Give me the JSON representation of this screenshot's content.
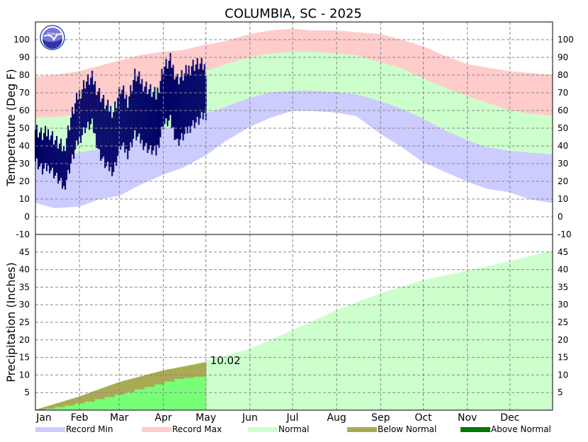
{
  "chart_data": [
    {
      "type": "area",
      "panel": "temperature",
      "title": "COLUMBIA, SC - 2025",
      "ylabel": "Temperature (Deg F)",
      "ylim": [
        -10,
        110
      ],
      "yticks": [
        -10,
        0,
        10,
        20,
        30,
        40,
        50,
        60,
        70,
        80,
        90,
        100
      ],
      "xlim": [
        1,
        365
      ],
      "grid": true,
      "x_unit": "day of year",
      "series": [
        {
          "name": "Record Max",
          "color": "#ffcccc",
          "x": [
            1,
            15,
            32,
            46,
            60,
            74,
            91,
            105,
            121,
            135,
            152,
            166,
            182,
            196,
            213,
            227,
            244,
            258,
            274,
            288,
            305,
            319,
            335,
            349,
            365
          ],
          "values": [
            79,
            80,
            82,
            85,
            88,
            91,
            93,
            94,
            97,
            99,
            103,
            105,
            106,
            105,
            105,
            104,
            103,
            100,
            96,
            91,
            86,
            84,
            82,
            81,
            80
          ]
        },
        {
          "name": "Normal High",
          "color": "#ccffcc",
          "x": [
            1,
            15,
            32,
            46,
            60,
            74,
            91,
            105,
            121,
            135,
            152,
            166,
            182,
            196,
            213,
            227,
            244,
            258,
            274,
            288,
            305,
            319,
            335,
            349,
            365
          ],
          "values": [
            56,
            56,
            58,
            61,
            64,
            68,
            74,
            78,
            82,
            86,
            90,
            92,
            93,
            93,
            92,
            91,
            87,
            84,
            78,
            73,
            68,
            64,
            60,
            58,
            57
          ]
        },
        {
          "name": "Normal Low",
          "color": "#ccffcc",
          "x": [
            1,
            15,
            32,
            46,
            60,
            74,
            91,
            105,
            121,
            135,
            152,
            166,
            182,
            196,
            213,
            227,
            244,
            258,
            274,
            288,
            305,
            319,
            335,
            349,
            365
          ],
          "values": [
            34,
            34,
            36,
            38,
            41,
            44,
            49,
            53,
            58,
            62,
            67,
            70,
            71,
            71,
            70,
            69,
            65,
            61,
            55,
            49,
            43,
            39,
            37,
            36,
            35
          ]
        },
        {
          "name": "Record Min",
          "color": "#ccccff",
          "x": [
            1,
            15,
            32,
            46,
            60,
            74,
            91,
            105,
            121,
            135,
            152,
            166,
            182,
            196,
            213,
            227,
            244,
            258,
            274,
            288,
            305,
            319,
            335,
            349,
            365
          ],
          "values": [
            8,
            5,
            6,
            10,
            12,
            18,
            24,
            28,
            35,
            43,
            51,
            56,
            60,
            60,
            59,
            57,
            47,
            40,
            31,
            26,
            20,
            16,
            14,
            10,
            8
          ]
        },
        {
          "name": "2025 Daily Range",
          "color": "#000066",
          "x": [
            1,
            6,
            11,
            16,
            21,
            26,
            31,
            36,
            41,
            46,
            51,
            56,
            61,
            66,
            71,
            76,
            81,
            86,
            91,
            96,
            101,
            106,
            111,
            116,
            121
          ],
          "high": [
            50,
            46,
            48,
            42,
            38,
            56,
            68,
            76,
            78,
            70,
            62,
            60,
            72,
            66,
            80,
            76,
            72,
            68,
            84,
            88,
            78,
            80,
            86,
            86,
            84
          ],
          "low": [
            32,
            26,
            28,
            22,
            16,
            30,
            42,
            50,
            52,
            36,
            28,
            26,
            40,
            36,
            46,
            42,
            38,
            36,
            52,
            54,
            42,
            46,
            52,
            54,
            58
          ]
        }
      ]
    },
    {
      "type": "area",
      "panel": "precipitation",
      "ylabel": "Precipitation (Inches)",
      "ylim": [
        0,
        50
      ],
      "yticks": [
        5,
        10,
        15,
        20,
        25,
        30,
        35,
        40,
        45
      ],
      "xlim": [
        1,
        365
      ],
      "grid": true,
      "x_unit": "day of year",
      "categories": [
        "Jan",
        "Feb",
        "Mar",
        "Apr",
        "May",
        "Jun",
        "Jul",
        "Aug",
        "Sep",
        "Oct",
        "Nov",
        "Dec"
      ],
      "month_start_days": [
        1,
        32,
        60,
        91,
        121,
        152,
        182,
        213,
        244,
        274,
        305,
        335
      ],
      "annotation": "10.02",
      "series": [
        {
          "name": "Normal",
          "color": "#ccffcc",
          "x": [
            1,
            32,
            60,
            91,
            121,
            152,
            182,
            213,
            244,
            274,
            305,
            335,
            365
          ],
          "values": [
            0,
            3.8,
            7.9,
            11.2,
            13.9,
            17.4,
            22.6,
            28.4,
            33.2,
            36.9,
            39.6,
            42.3,
            45.3
          ]
        },
        {
          "name": "Below Normal",
          "color": "#aaaa55",
          "x": [
            1,
            32,
            60,
            91,
            121
          ],
          "values": [
            0,
            3.8,
            7.9,
            11.2,
            13.5
          ]
        },
        {
          "name": "2025 Observed",
          "color": "#77ff77",
          "x": [
            1,
            8,
            15,
            22,
            29,
            36,
            43,
            50,
            57,
            64,
            71,
            78,
            85,
            92,
            99,
            106,
            113,
            121
          ],
          "values": [
            0,
            0.3,
            0.8,
            1.2,
            1.8,
            2.3,
            3.0,
            3.6,
            4.3,
            5.0,
            5.8,
            6.5,
            7.2,
            8.0,
            8.8,
            9.1,
            9.4,
            10.02
          ]
        }
      ]
    }
  ],
  "legend": [
    {
      "label": "Record Min",
      "color": "#ccccff"
    },
    {
      "label": "Record Max",
      "color": "#ffcccc"
    },
    {
      "label": "Normal",
      "color": "#ccffcc"
    },
    {
      "label": "Below Normal",
      "color": "#aaaa55"
    },
    {
      "label": "Above Normal",
      "color": "#007700"
    }
  ],
  "logo": {
    "text": "NOAA"
  }
}
